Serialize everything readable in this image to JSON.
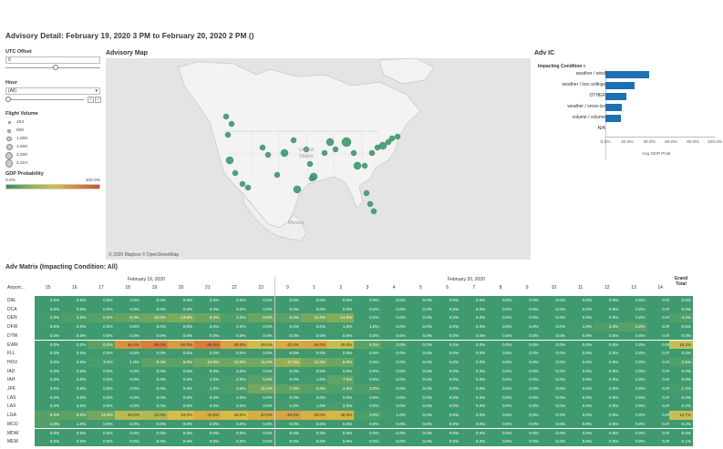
{
  "title": "Advisory Detail: February 19, 2020 3 PM to February 20, 2020 2 PM ()",
  "filters": {
    "utc_offset_label": "UTC Offset",
    "utc_offset_value": "0",
    "hour_label": "Hour",
    "hour_value": "(All)",
    "flight_volume_label": "Flight Volume",
    "flight_volume_items": [
      {
        "label": "154",
        "size": 3
      },
      {
        "label": "500",
        "size": 4
      },
      {
        "label": "1,000",
        "size": 5.5
      },
      {
        "label": "1,500",
        "size": 7
      },
      {
        "label": "2,000",
        "size": 8
      },
      {
        "label": "2,424",
        "size": 9
      }
    ],
    "gdp_label": "GDP Probability",
    "gdp_min": "0.0%",
    "gdp_max": "100.0%"
  },
  "map": {
    "title": "Advisory Map",
    "attribution": "© 2020 Mapbox © OpenStreetMap",
    "country_labels": [
      "United States",
      "Mexico"
    ]
  },
  "adv_ic": {
    "title": "Adv IC",
    "header": "Impacting Condition",
    "rows": [
      {
        "label": "weather / wind",
        "value": 0.4
      },
      {
        "label": "weather / low ceilings",
        "value": 0.27
      },
      {
        "label": "OTHER",
        "value": 0.19
      },
      {
        "label": "weather / snow-ice",
        "value": 0.15
      },
      {
        "label": "volume / volume",
        "value": 0.14
      },
      {
        "label": "N/A",
        "value": 0.0
      }
    ],
    "ticks": [
      "0.0%",
      "20.0%",
      "40.0%",
      "60.0%",
      "80.0%",
      "100.0%"
    ],
    "xlabel": "Avg GDP Prob",
    "bar_color": "#1f6fb4"
  },
  "matrix": {
    "title": "Adv Matrix (Impacting Condition: All)",
    "day1": "February 19, 2020",
    "day2": "February 20, 2020",
    "airport_header": "Airport...",
    "grand_total_label": "Grand Total",
    "hours": [
      "15",
      "16",
      "17",
      "18",
      "19",
      "20",
      "21",
      "22",
      "23",
      "0",
      "1",
      "2",
      "3",
      "4",
      "5",
      "6",
      "7",
      "8",
      "9",
      "10",
      "11",
      "12",
      "13",
      "14"
    ],
    "rows": [
      {
        "airport": "DAL",
        "cells": [
          "0.0%",
          "0.0%",
          "0.0%",
          "0.0%",
          "0.0%",
          "0.0%",
          "0.0%",
          "0.0%",
          "0.0%",
          "0.0%",
          "0.0%",
          "0.0%",
          "0.0%",
          "0.0%",
          "0.0%",
          "0.0%",
          "0.0%",
          "0.0%",
          "0.0%",
          "0.0%",
          "0.0%",
          "0.0%",
          "0.0%",
          "0.0%"
        ],
        "total": "0.0%"
      },
      {
        "airport": "DCA",
        "cells": [
          "0.0%",
          "0.0%",
          "0.0%",
          "0.0%",
          "0.0%",
          "0.0%",
          "0.0%",
          "0.0%",
          "0.0%",
          "0.0%",
          "0.0%",
          "0.0%",
          "0.0%",
          "0.0%",
          "0.0%",
          "0.0%",
          "0.0%",
          "0.0%",
          "0.0%",
          "0.0%",
          "0.0%",
          "0.0%",
          "0.0%",
          "0.0%"
        ],
        "total": "0.0%"
      },
      {
        "airport": "DEN",
        "cells": [
          "1.0%",
          "3.0%",
          "5.0%",
          "8.0%",
          "10.0%",
          "13.0%",
          "9.0%",
          "4.0%",
          "9.0%",
          "6.0%",
          "11.0%",
          "14.0%",
          "0.0%",
          "0.0%",
          "0.0%",
          "0.0%",
          "0.0%",
          "0.0%",
          "0.0%",
          "0.0%",
          "0.0%",
          "0.0%",
          "0.0%",
          "0.0%"
        ],
        "total": "4.2%"
      },
      {
        "airport": "DFW",
        "cells": [
          "0.0%",
          "0.0%",
          "0.0%",
          "0.0%",
          "0.0%",
          "0.0%",
          "0.0%",
          "0.0%",
          "0.0%",
          "0.0%",
          "0.0%",
          "1.0%",
          "1.0%",
          "0.0%",
          "0.0%",
          "0.0%",
          "0.0%",
          "0.0%",
          "0.0%",
          "0.0%",
          "1.0%",
          "3.0%",
          "5.0%",
          "0.0%"
        ],
        "total": "0.5%"
      },
      {
        "airport": "DTW",
        "cells": [
          "0.0%",
          "0.0%",
          "0.0%",
          "0.0%",
          "0.0%",
          "0.0%",
          "0.0%",
          "0.0%",
          "0.0%",
          "0.0%",
          "0.0%",
          "0.0%",
          "0.0%",
          "0.0%",
          "0.0%",
          "0.0%",
          "0.0%",
          "0.0%",
          "0.0%",
          "0.0%",
          "0.0%",
          "0.0%",
          "0.0%",
          "0.0%"
        ],
        "total": "0.0%"
      },
      {
        "airport": "EWR",
        "cells": [
          "0.0%",
          "0.0%",
          "6.0%",
          "56.0%",
          "65.0%",
          "50.0%",
          "66.0%",
          "46.0%",
          "29.0%",
          "43.0%",
          "46.0%",
          "28.0%",
          "6.0%",
          "2.0%",
          "0.0%",
          "0.0%",
          "0.0%",
          "0.0%",
          "0.0%",
          "0.0%",
          "0.0%",
          "0.0%",
          "0.0%",
          "0.0%"
        ],
        "total": "18.2%"
      },
      {
        "airport": "FLL",
        "cells": [
          "0.0%",
          "0.0%",
          "0.0%",
          "0.0%",
          "0.0%",
          "0.0%",
          "0.0%",
          "0.0%",
          "0.0%",
          "0.0%",
          "0.0%",
          "0.0%",
          "0.0%",
          "0.0%",
          "0.0%",
          "0.0%",
          "0.0%",
          "0.0%",
          "0.0%",
          "0.0%",
          "0.0%",
          "0.0%",
          "0.0%",
          "0.0%"
        ],
        "total": "0.0%"
      },
      {
        "airport": "HOU",
        "cells": [
          "0.0%",
          "0.0%",
          "2.0%",
          "1.0%",
          "6.0%",
          "6.0%",
          "10.0%",
          "10.0%",
          "11.0%",
          "17.0%",
          "11.0%",
          "9.0%",
          "0.0%",
          "0.0%",
          "0.0%",
          "0.0%",
          "0.0%",
          "0.0%",
          "0.0%",
          "0.0%",
          "0.0%",
          "0.0%",
          "0.0%",
          "0.0%"
        ],
        "total": "3.5%"
      },
      {
        "airport": "IAD",
        "cells": [
          "0.0%",
          "0.0%",
          "0.0%",
          "0.0%",
          "0.0%",
          "0.0%",
          "0.0%",
          "0.0%",
          "0.0%",
          "0.0%",
          "0.0%",
          "0.0%",
          "0.0%",
          "0.0%",
          "0.0%",
          "0.0%",
          "0.0%",
          "0.0%",
          "0.0%",
          "0.0%",
          "0.0%",
          "0.0%",
          "0.0%",
          "0.0%"
        ],
        "total": "0.0%"
      },
      {
        "airport": "IAH",
        "cells": [
          "0.0%",
          "0.0%",
          "0.0%",
          "0.0%",
          "0.0%",
          "0.0%",
          "1.0%",
          "2.0%",
          "5.0%",
          "0.0%",
          "1.0%",
          "7.0%",
          "0.0%",
          "0.0%",
          "0.0%",
          "0.0%",
          "0.0%",
          "0.0%",
          "0.0%",
          "0.0%",
          "0.0%",
          "0.0%",
          "0.0%",
          "0.0%"
        ],
        "total": "0.6%"
      },
      {
        "airport": "JFK",
        "cells": [
          "0.0%",
          "0.0%",
          "0.0%",
          "0.0%",
          "0.0%",
          "0.0%",
          "1.0%",
          "3.0%",
          "11.0%",
          "7.0%",
          "5.0%",
          "4.0%",
          "3.0%",
          "0.0%",
          "0.0%",
          "0.0%",
          "0.0%",
          "0.0%",
          "0.0%",
          "0.0%",
          "0.0%",
          "0.0%",
          "0.0%",
          "0.0%"
        ],
        "total": "1.4%"
      },
      {
        "airport": "LAS",
        "cells": [
          "0.0%",
          "0.0%",
          "0.0%",
          "0.0%",
          "0.0%",
          "0.0%",
          "0.0%",
          "0.0%",
          "0.0%",
          "0.0%",
          "0.0%",
          "0.0%",
          "0.0%",
          "0.0%",
          "0.0%",
          "0.0%",
          "0.0%",
          "0.0%",
          "0.0%",
          "0.0%",
          "0.0%",
          "0.0%",
          "0.0%",
          "0.0%"
        ],
        "total": "0.0%"
      },
      {
        "airport": "LAX",
        "cells": [
          "0.0%",
          "0.0%",
          "0.0%",
          "0.0%",
          "0.0%",
          "0.0%",
          "0.0%",
          "0.0%",
          "0.0%",
          "1.0%",
          "1.0%",
          "2.0%",
          "0.0%",
          "0.0%",
          "0.0%",
          "0.0%",
          "0.0%",
          "0.0%",
          "0.0%",
          "0.0%",
          "0.0%",
          "0.0%",
          "0.0%",
          "0.0%"
        ],
        "total": "0.2%"
      },
      {
        "airport": "LGA",
        "cells": [
          "5.0%",
          "6.0%",
          "11.0%",
          "25.0%",
          "23.0%",
          "34.0%",
          "43.0%",
          "35.0%",
          "42.0%",
          "46.0%",
          "40.0%",
          "38.0%",
          "3.0%",
          "1.0%",
          "0.0%",
          "0.0%",
          "0.0%",
          "0.0%",
          "0.0%",
          "0.0%",
          "0.0%",
          "0.0%",
          "0.0%",
          "0.0%"
        ],
        "total": "14.7%"
      },
      {
        "airport": "MCO",
        "cells": [
          "4.0%",
          "1.0%",
          "0.0%",
          "0.0%",
          "0.0%",
          "0.0%",
          "0.0%",
          "0.0%",
          "0.0%",
          "0.0%",
          "0.0%",
          "0.0%",
          "0.0%",
          "0.0%",
          "0.0%",
          "0.0%",
          "0.0%",
          "0.0%",
          "0.0%",
          "0.0%",
          "0.0%",
          "0.0%",
          "0.0%",
          "0.0%"
        ],
        "total": "0.2%"
      },
      {
        "airport": "MDW",
        "cells": [
          "0.0%",
          "0.0%",
          "0.0%",
          "0.0%",
          "0.0%",
          "0.0%",
          "0.0%",
          "0.0%",
          "0.0%",
          "0.0%",
          "0.0%",
          "0.0%",
          "0.0%",
          "0.0%",
          "0.0%",
          "0.0%",
          "0.0%",
          "0.0%",
          "0.0%",
          "0.0%",
          "0.0%",
          "0.0%",
          "0.0%",
          "0.0%"
        ],
        "total": "0.0%"
      },
      {
        "airport": "MEM",
        "cells": [
          "0.0%",
          "0.0%",
          "0.0%",
          "0.0%",
          "0.0%",
          "0.0%",
          "0.0%",
          "0.0%",
          "0.0%",
          "0.0%",
          "0.0%",
          "0.0%",
          "0.0%",
          "0.0%",
          "0.0%",
          "0.0%",
          "0.0%",
          "0.0%",
          "0.0%",
          "0.0%",
          "0.0%",
          "0.0%",
          "0.0%",
          "0.0%"
        ],
        "total": "0.1%"
      }
    ],
    "colors": {
      "low": "#3c9a6e",
      "mid": "#d8c24a",
      "high": "#d6763a"
    }
  }
}
